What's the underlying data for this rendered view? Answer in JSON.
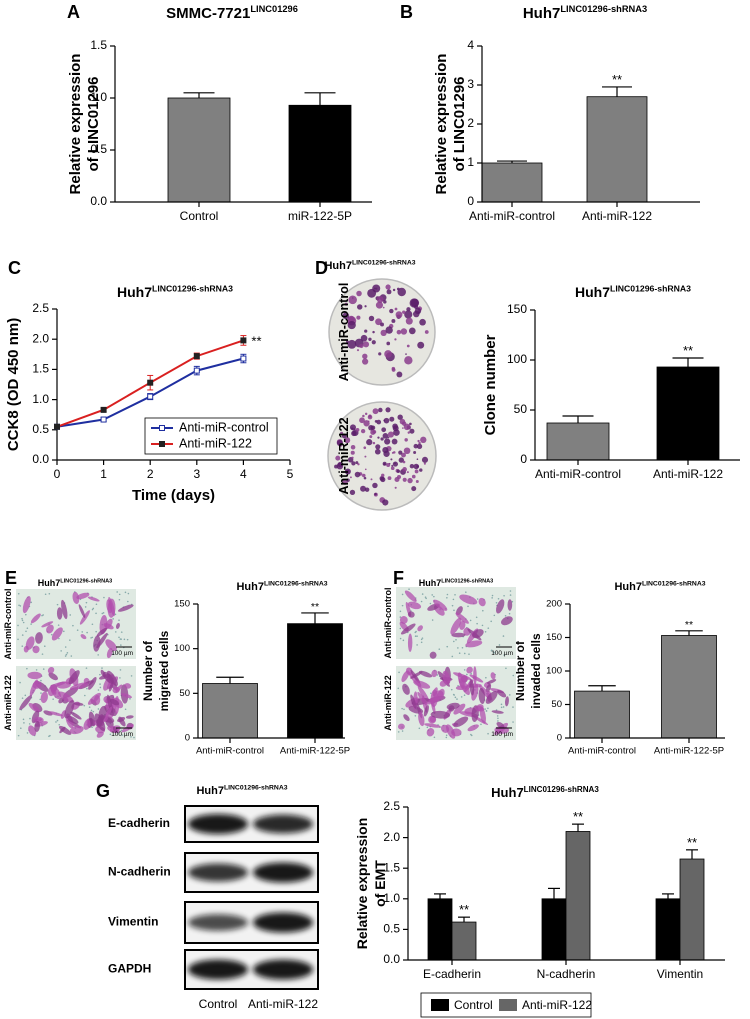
{
  "chart_data": [
    {
      "panel": "A",
      "type": "bar",
      "title": "SMMC-7721",
      "title_sub": "LINC01296",
      "ylabel": [
        "Relative expression",
        "of LINC01296"
      ],
      "categories": [
        "Control",
        "miR-122-5P"
      ],
      "values": [
        1.0,
        0.93
      ],
      "errors": [
        0.05,
        0.12
      ],
      "colors": [
        "#808080",
        "#000000"
      ],
      "ylim": [
        0,
        1.5
      ],
      "yticks": [
        {
          "value": 0,
          "label": "0.0"
        },
        {
          "value": 0.5,
          "label": "0.5"
        },
        {
          "value": 1,
          "label": "1.0"
        },
        {
          "value": 1.5,
          "label": "1.5"
        }
      ]
    },
    {
      "panel": "B",
      "type": "bar",
      "title": "Huh7",
      "title_sub": "LINC01296-shRNA3",
      "ylabel": [
        "Relative expression",
        "of LINC01296"
      ],
      "categories": [
        "Anti-miR-control",
        "Anti-miR-122"
      ],
      "values": [
        1.0,
        2.7
      ],
      "errors": [
        0.05,
        0.25
      ],
      "annotations": [
        null,
        "**"
      ],
      "colors": [
        "#7f7f7f",
        "#7f7f7f"
      ],
      "ylim": [
        0,
        4
      ],
      "yticks": [
        0,
        1,
        2,
        3,
        4
      ]
    },
    {
      "panel": "C",
      "type": "line",
      "title": "Huh7",
      "title_sub": "LINC01296-shRNA3",
      "xlabel": "Time (days)",
      "ylabel": [
        "CCK8 (OD 450 nm)"
      ],
      "x": [
        0,
        1,
        2,
        3,
        4
      ],
      "series": [
        {
          "name": "Anti-miR-control",
          "color": "#1f2fa0",
          "values": [
            0.55,
            0.67,
            1.05,
            1.48,
            1.68
          ],
          "errors": [
            0.02,
            0.03,
            0.05,
            0.07,
            0.07
          ]
        },
        {
          "name": "Anti-miR-122",
          "color": "#d92020",
          "values": [
            0.55,
            0.83,
            1.28,
            1.72,
            1.98
          ],
          "errors": [
            0.02,
            0.03,
            0.12,
            0.05,
            0.08
          ]
        }
      ],
      "annotation": "**",
      "xlim": [
        0,
        5
      ],
      "xticks": [
        0,
        1,
        2,
        3,
        4,
        5
      ],
      "ylim": [
        0,
        2.5
      ],
      "yticks": [
        {
          "value": 0,
          "label": "0.0"
        },
        {
          "value": 0.5,
          "label": "0.5"
        },
        {
          "value": 1,
          "label": "1.0"
        },
        {
          "value": 1.5,
          "label": "1.5"
        },
        {
          "value": 2,
          "label": "2.0"
        },
        {
          "value": 2.5,
          "label": "2.5"
        }
      ],
      "legend": "lower right"
    },
    {
      "type": "bar",
      "title": "Huh7",
      "title_sub": "LINC01296-shRNA3",
      "ylabel": [
        "Clone number"
      ],
      "categories": [
        "Anti-miR-control",
        "Anti-miR-122"
      ],
      "values": [
        37,
        93
      ],
      "errors": [
        7,
        9
      ],
      "annotations": [
        null,
        "**"
      ],
      "colors": [
        "#808080",
        "#000000"
      ],
      "ylim": [
        0,
        150
      ],
      "yticks": [
        0,
        50,
        100,
        150
      ]
    },
    {
      "type": "bar",
      "title": "Huh7",
      "title_sub": "LINC01296-shRNA3",
      "ylabel": [
        "Number of",
        "migrated cells"
      ],
      "categories": [
        "Anti-miR-control",
        "Anti-miR-122-5P"
      ],
      "values": [
        61,
        128
      ],
      "errors": [
        7,
        12
      ],
      "annotations": [
        null,
        "**"
      ],
      "colors": [
        "#808080",
        "#000000"
      ],
      "ylim": [
        0,
        150
      ],
      "yticks": [
        0,
        50,
        100,
        150
      ]
    },
    {
      "type": "bar",
      "title": "Huh7",
      "title_sub": "LINC01296-shRNA3",
      "ylabel": [
        "Number of",
        "invaded cells"
      ],
      "categories": [
        "Anti-miR-control",
        "Anti-miR-122-5P"
      ],
      "values": [
        70,
        153
      ],
      "errors": [
        8,
        7
      ],
      "annotations": [
        null,
        "**"
      ],
      "colors": [
        "#808080",
        "#808080"
      ],
      "ylim": [
        0,
        200
      ],
      "yticks": [
        0,
        50,
        100,
        150,
        200
      ]
    },
    {
      "type": "bar",
      "title": "Huh7",
      "title_sub": "LINC01296-shRNA3",
      "ylabel": [
        "Relative expression",
        "of EMT"
      ],
      "categories": [
        "E-cadherin",
        "N-cadherin",
        "Vimentin"
      ],
      "series": [
        {
          "name": "Control",
          "color": "#000000",
          "values": [
            1.0,
            1.0,
            1.0
          ],
          "errors": [
            0.08,
            0.17,
            0.08
          ]
        },
        {
          "name": "Anti-miR-122",
          "color": "#666666",
          "values": [
            0.62,
            2.1,
            1.65
          ],
          "errors": [
            0.08,
            0.12,
            0.15
          ],
          "annotations": [
            "**",
            "**",
            "**"
          ]
        }
      ],
      "ylim": [
        0,
        2.5
      ],
      "yticks": [
        {
          "value": 0,
          "label": "0.0"
        },
        {
          "value": 0.5,
          "label": "0.5"
        },
        {
          "value": 1,
          "label": "1.0"
        },
        {
          "value": 1.5,
          "label": "1.5"
        },
        {
          "value": 2,
          "label": "2.0"
        },
        {
          "value": 2.5,
          "label": "2.5"
        }
      ],
      "legend": "bottom"
    }
  ],
  "image_panels": {
    "D": {
      "panel": "D",
      "title": "Huh7",
      "title_sub": "LINC01296-shRNA3",
      "rows": [
        "Anti-miR-control",
        "Anti-miR-122"
      ]
    },
    "E": {
      "panel": "E",
      "title": "Huh7",
      "title_sub": "LINC01296-shRNA3",
      "rows": [
        "Anti-miR-control",
        "Anti-miR-122"
      ],
      "scale_bar": "100 µm"
    },
    "F": {
      "panel": "F",
      "title": "Huh7",
      "title_sub": "LINC01296-shRNA3",
      "rows": [
        "Anti-miR-control",
        "Anti-miR-122"
      ],
      "scale_bar": "100 µm"
    },
    "G": {
      "panel": "G",
      "title": "Huh7",
      "title_sub": "LINC01296-shRNA3",
      "bands": [
        "E-cadherin",
        "N-cadherin",
        "Vimentin",
        "GAPDH"
      ],
      "lanes": [
        "Control",
        "Anti-miR-122"
      ]
    }
  }
}
